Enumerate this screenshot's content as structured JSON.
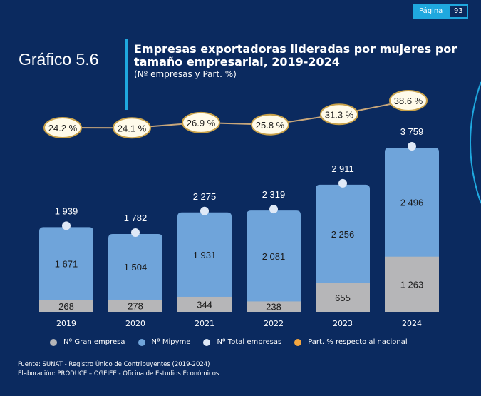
{
  "header": {
    "page_label": "Página",
    "page_number": "93"
  },
  "figure": {
    "number": "Gráfico 5.6",
    "title": "Empresas exportadoras lideradas por mujeres por tamaño empresarial, 2019-2024",
    "subtitle": "(Nº empresas y Part. %)"
  },
  "chart_data": {
    "type": "bar",
    "stacked": true,
    "categories": [
      "2019",
      "2020",
      "2021",
      "2022",
      "2023",
      "2024"
    ],
    "series": [
      {
        "name": "Nº Gran empresa",
        "values": [
          268,
          278,
          344,
          238,
          655,
          1263
        ],
        "labels": [
          "268",
          "278",
          "344",
          "238",
          "655",
          "1 263"
        ],
        "color": "#b6b6b8"
      },
      {
        "name": "Nº Mipyme",
        "values": [
          1671,
          1504,
          1931,
          2081,
          2256,
          2496
        ],
        "labels": [
          "1 671",
          "1 504",
          "1 931",
          "2 081",
          "2 256",
          "2 496"
        ],
        "color": "#6fa4da"
      },
      {
        "name": "Nº Total empresas",
        "values": [
          1939,
          1782,
          2275,
          2319,
          2911,
          3759
        ],
        "labels": [
          "1 939",
          "1 782",
          "2 275",
          "2 319",
          "2 911",
          "3 759"
        ],
        "color": "#dfe9f7"
      },
      {
        "name": "Part. % respecto al nacional",
        "type": "line",
        "values": [
          24.2,
          24.1,
          26.9,
          25.8,
          31.3,
          38.6
        ],
        "labels": [
          "24.2 %",
          "24.1 %",
          "26.9 %",
          "25.8 %",
          "31.3 %",
          "38.6 %"
        ],
        "color": "#f4a740"
      }
    ],
    "legend_position": "bottom",
    "grid": false
  },
  "footer": {
    "source": "Fuente: SUNAT - Registro Único de Contribuyentes (2019-2024)",
    "elaboration": "Elaboración: PRODUCE – OGEIEE - Oficina de Estudios Económicos"
  }
}
